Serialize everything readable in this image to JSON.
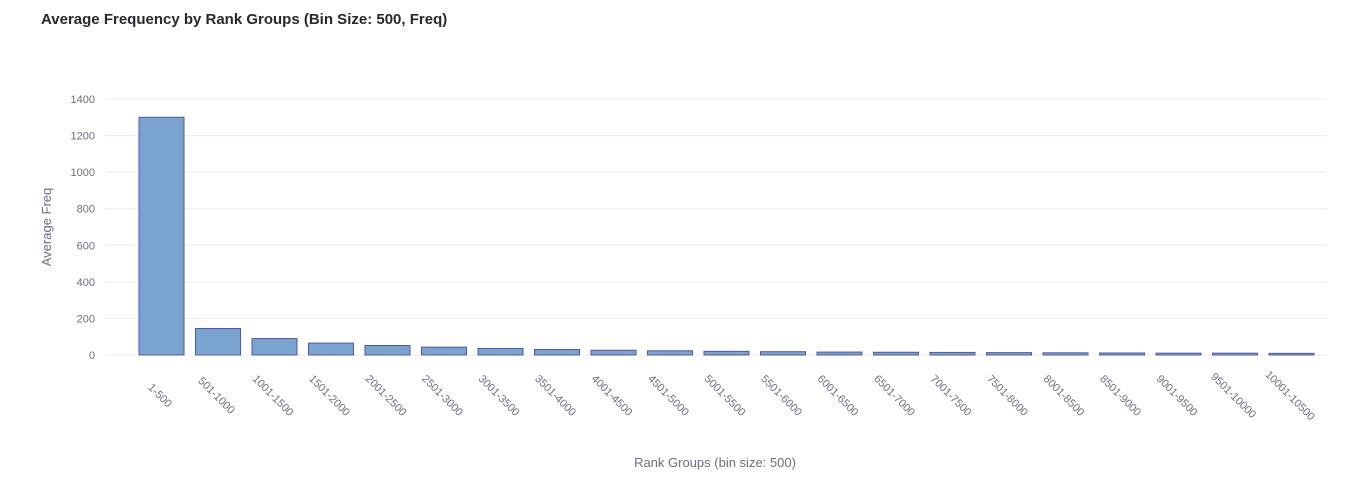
{
  "chart_data": {
    "type": "bar",
    "title": "Average Frequency by Rank Groups (Bin Size: 500, Freq)",
    "xlabel": "Rank Groups (bin size: 500)",
    "ylabel": "Average Freq",
    "ylim": [
      0,
      1400
    ],
    "yticks": [
      0,
      200,
      400,
      600,
      800,
      1000,
      1200,
      1400
    ],
    "grid": true,
    "legend": "none",
    "categories": [
      "1-500",
      "501-1000",
      "1001-1500",
      "1501-2000",
      "2001-2500",
      "2501-3000",
      "3001-3500",
      "3501-4000",
      "4001-4500",
      "4501-5000",
      "5001-5500",
      "5501-6000",
      "6001-6500",
      "6501-7000",
      "7001-7500",
      "7501-8000",
      "8001-8500",
      "8501-9000",
      "9001-9500",
      "9501-10000",
      "10001-10500"
    ],
    "values": [
      1300,
      145,
      90,
      65,
      52,
      43,
      36,
      30,
      26,
      23,
      20,
      18,
      16,
      15,
      14,
      13,
      12,
      11,
      10,
      10,
      9
    ],
    "bar_color": "#7ba3cf",
    "bar_stroke": "#4f58a8"
  }
}
